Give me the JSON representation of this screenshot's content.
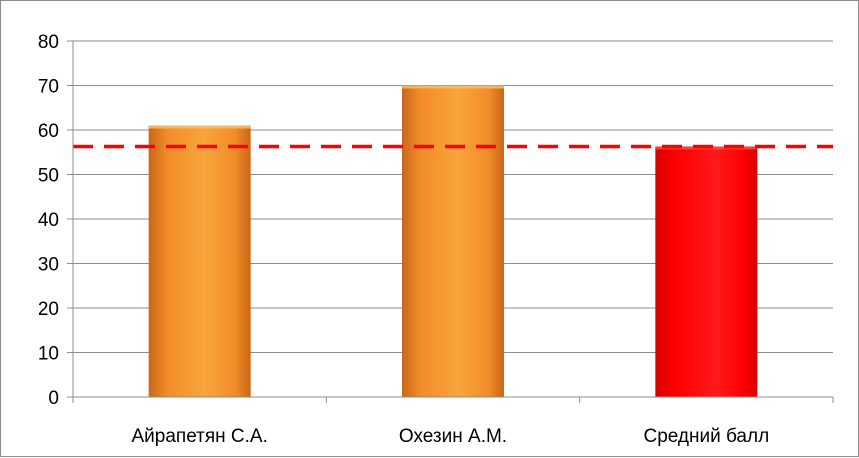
{
  "chart_data": {
    "type": "bar",
    "title": "",
    "xlabel": "",
    "ylabel": "",
    "categories": [
      "Айрапетян С.А.",
      "Охезин А.М.",
      "Средний балл"
    ],
    "values": [
      61,
      70,
      56.3
    ],
    "ylim": [
      0,
      80
    ],
    "yticks": [
      "0",
      "10",
      "20",
      "30",
      "40",
      "50",
      "60",
      "70",
      "80"
    ],
    "grid": true,
    "legend": "none",
    "reference_line": {
      "value": 56.3,
      "style": "dashed",
      "color": "#ff0000"
    },
    "colors": {
      "bar_default": "#f28c28",
      "bar_highlight": "#ff0000",
      "grid": "#8c8c8c",
      "axis": "#8c8c8c"
    },
    "highlight_index": 2
  }
}
